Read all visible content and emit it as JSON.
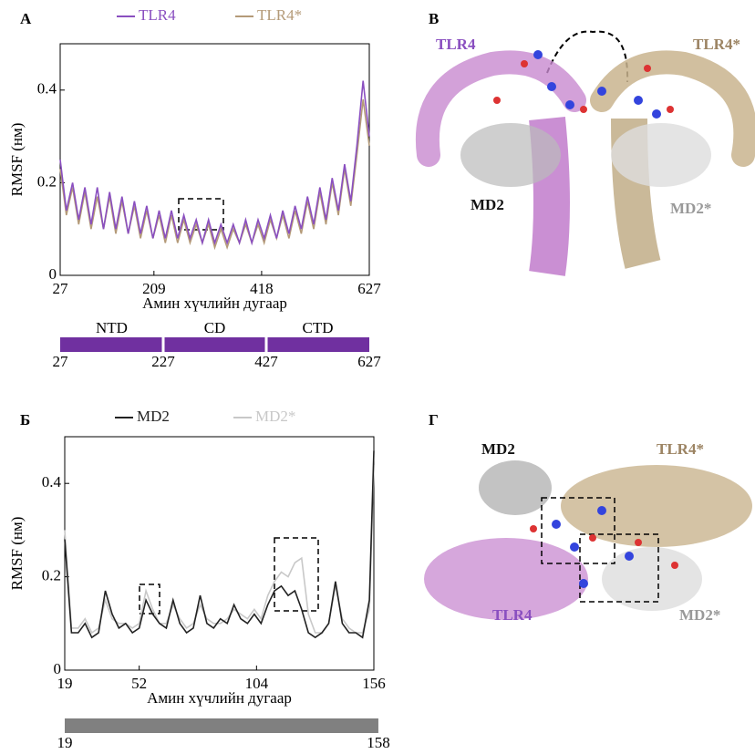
{
  "chart_data": [
    {
      "type": "line",
      "panel": "А",
      "ylabel": "RMSF (нм)",
      "xlabel": "Амин хүчлийн дугаар",
      "xlim": [
        27,
        627
      ],
      "ylim": [
        0,
        0.5
      ],
      "xticks": [
        27,
        209,
        418,
        627
      ],
      "yticks": [
        0,
        0.2,
        0.4
      ],
      "x": [
        27,
        39,
        51,
        63,
        75,
        87,
        99,
        111,
        123,
        135,
        147,
        159,
        171,
        183,
        195,
        207,
        219,
        231,
        243,
        255,
        267,
        279,
        291,
        303,
        315,
        327,
        339,
        351,
        363,
        375,
        387,
        399,
        411,
        423,
        435,
        447,
        459,
        471,
        483,
        495,
        507,
        519,
        531,
        543,
        555,
        567,
        579,
        591,
        603,
        615,
        627
      ],
      "series": [
        {
          "name": "TLR4",
          "color": "#8a4fc0",
          "values": [
            0.25,
            0.14,
            0.2,
            0.12,
            0.19,
            0.11,
            0.19,
            0.1,
            0.18,
            0.1,
            0.17,
            0.09,
            0.16,
            0.09,
            0.15,
            0.08,
            0.14,
            0.08,
            0.14,
            0.08,
            0.13,
            0.08,
            0.12,
            0.07,
            0.12,
            0.07,
            0.11,
            0.07,
            0.11,
            0.07,
            0.12,
            0.07,
            0.12,
            0.08,
            0.13,
            0.08,
            0.14,
            0.09,
            0.15,
            0.1,
            0.17,
            0.11,
            0.19,
            0.12,
            0.21,
            0.14,
            0.24,
            0.16,
            0.28,
            0.42,
            0.3
          ]
        },
        {
          "name": "TLR4*",
          "color": "#b49a78",
          "values": [
            0.23,
            0.13,
            0.19,
            0.11,
            0.18,
            0.1,
            0.17,
            0.1,
            0.17,
            0.09,
            0.16,
            0.09,
            0.15,
            0.08,
            0.14,
            0.08,
            0.13,
            0.07,
            0.13,
            0.07,
            0.12,
            0.07,
            0.11,
            0.07,
            0.11,
            0.06,
            0.1,
            0.06,
            0.1,
            0.07,
            0.11,
            0.07,
            0.11,
            0.07,
            0.12,
            0.08,
            0.13,
            0.08,
            0.14,
            0.09,
            0.16,
            0.1,
            0.18,
            0.11,
            0.2,
            0.13,
            0.23,
            0.15,
            0.26,
            0.38,
            0.28
          ]
        }
      ],
      "domains": [
        {
          "name": "NTD",
          "start": 27,
          "end": 227
        },
        {
          "name": "CD",
          "start": 227,
          "end": 427
        },
        {
          "name": "CTD",
          "start": 427,
          "end": 627
        }
      ],
      "domain_color": "#7030a0",
      "domain_ticks": [
        27,
        227,
        427,
        627
      ]
    },
    {
      "type": "line",
      "panel": "Б",
      "ylabel": "RMSF (нм)",
      "xlabel": "Амин хүчлийн дугаар",
      "xlim": [
        19,
        156
      ],
      "ylim": [
        0,
        0.5
      ],
      "xticks": [
        19,
        52,
        104,
        156
      ],
      "yticks": [
        0,
        0.2,
        0.4
      ],
      "x": [
        19,
        22,
        25,
        28,
        31,
        34,
        37,
        40,
        43,
        46,
        49,
        52,
        55,
        58,
        61,
        64,
        67,
        70,
        73,
        76,
        79,
        82,
        85,
        88,
        91,
        94,
        97,
        100,
        103,
        106,
        109,
        112,
        115,
        118,
        121,
        124,
        127,
        130,
        133,
        136,
        139,
        142,
        145,
        148,
        151,
        154,
        156
      ],
      "series": [
        {
          "name": "MD2",
          "color": "#222222",
          "values": [
            0.28,
            0.08,
            0.08,
            0.1,
            0.07,
            0.08,
            0.17,
            0.12,
            0.09,
            0.1,
            0.08,
            0.09,
            0.15,
            0.12,
            0.1,
            0.09,
            0.15,
            0.1,
            0.08,
            0.09,
            0.16,
            0.1,
            0.09,
            0.11,
            0.1,
            0.14,
            0.11,
            0.1,
            0.12,
            0.1,
            0.14,
            0.17,
            0.18,
            0.16,
            0.17,
            0.13,
            0.08,
            0.07,
            0.08,
            0.1,
            0.19,
            0.1,
            0.08,
            0.08,
            0.07,
            0.15,
            0.47
          ]
        },
        {
          "name": "MD2*",
          "color": "#c8c8c8",
          "values": [
            0.3,
            0.09,
            0.09,
            0.11,
            0.08,
            0.09,
            0.15,
            0.11,
            0.1,
            0.1,
            0.09,
            0.1,
            0.17,
            0.13,
            0.1,
            0.1,
            0.14,
            0.11,
            0.09,
            0.1,
            0.14,
            0.11,
            0.1,
            0.1,
            0.11,
            0.13,
            0.12,
            0.11,
            0.13,
            0.11,
            0.16,
            0.19,
            0.21,
            0.2,
            0.23,
            0.24,
            0.12,
            0.08,
            0.08,
            0.1,
            0.18,
            0.11,
            0.09,
            0.08,
            0.08,
            0.13,
            0.44
          ]
        }
      ],
      "domains": [
        {
          "start": 19,
          "end": 158
        }
      ],
      "domain_color": "#808080",
      "domain_ticks": [
        19,
        158
      ]
    }
  ],
  "structures": [
    {
      "panel": "В",
      "labels": [
        "TLR4",
        "TLR4*",
        "MD2",
        "MD2*"
      ]
    },
    {
      "panel": "Г",
      "labels": [
        "MD2",
        "TLR4*",
        "TLR4",
        "MD2*"
      ]
    }
  ]
}
